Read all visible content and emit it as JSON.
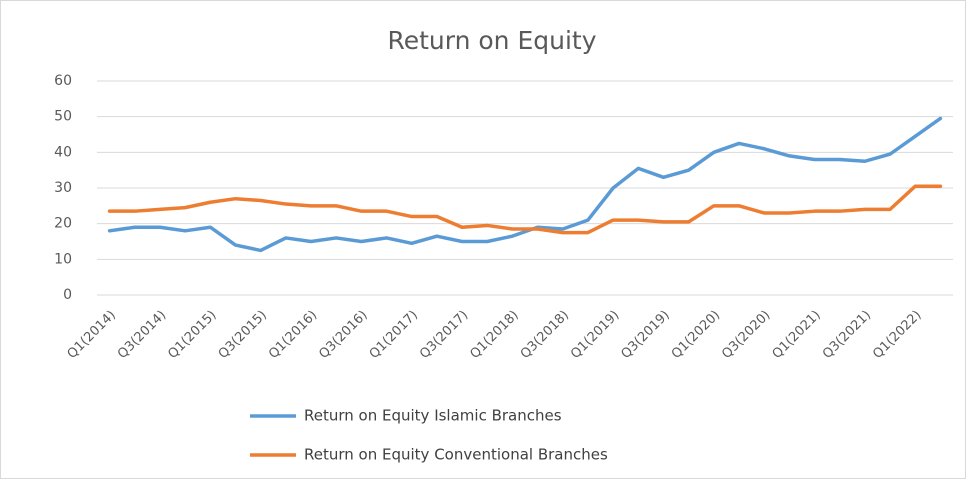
{
  "chart_data": {
    "type": "line",
    "title": "Return on Equity",
    "categories": [
      "Q1(2014)",
      null,
      "Q3(2014)",
      null,
      "Q1(2015)",
      null,
      "Q3(2015)",
      null,
      "Q1(2016)",
      null,
      "Q3(2016)",
      null,
      "Q1(2017)",
      null,
      "Q3(2017)",
      null,
      "Q1(2018)",
      null,
      "Q3(2018)",
      null,
      "Q1(2019)",
      null,
      "Q3(2019)",
      null,
      "Q1(2020)",
      null,
      "Q3(2020)",
      null,
      "Q1(2021)",
      null,
      "Q3(2021)",
      null,
      "Q1(2022)",
      null
    ],
    "series": [
      {
        "name": "Return on Equity  Islamic Branches",
        "color": "#5b9bd5",
        "values": [
          18,
          19,
          19,
          18,
          19,
          14,
          12.5,
          16,
          15,
          16,
          15,
          16,
          14.5,
          16.5,
          15,
          15,
          16.5,
          19,
          18.5,
          21,
          30,
          35.5,
          33,
          35,
          40,
          42.5,
          41,
          39,
          38,
          38,
          37.5,
          39.5,
          44.5,
          49.5
        ]
      },
      {
        "name": "Return on Equity  Conventional Branches",
        "color": "#ed7d31",
        "values": [
          23.5,
          23.5,
          24,
          24.5,
          26,
          27,
          26.5,
          25.5,
          25,
          25,
          23.5,
          23.5,
          22,
          22,
          19,
          19.5,
          18.5,
          18.5,
          17.5,
          17.5,
          21,
          21,
          20.5,
          20.5,
          25,
          25,
          23,
          23,
          23.5,
          23.5,
          24,
          24,
          30.5,
          30.5
        ]
      }
    ],
    "ylim": [
      0,
      60
    ],
    "yticks": [
      0,
      10,
      20,
      30,
      40,
      50,
      60
    ],
    "grid": true,
    "legend": "bottom"
  }
}
